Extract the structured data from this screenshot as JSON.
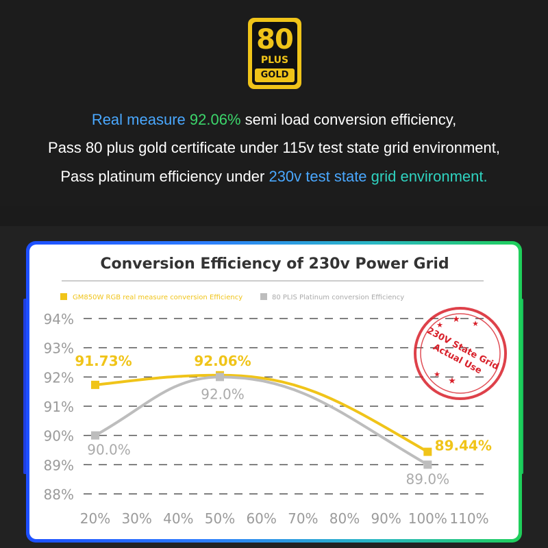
{
  "badge": {
    "number": "80",
    "plus": "PLUS",
    "grade": "GOLD"
  },
  "headline": {
    "line1": {
      "a": "Real measure ",
      "b": "92.06%",
      "c": " semi load conversion efficiency,"
    },
    "line2": "Pass 80 plus gold certificate under 115v test state grid environment,",
    "line3": {
      "a": "Pass platinum efficiency under ",
      "b": "230v test state ",
      "c": "grid environment."
    }
  },
  "stamp": {
    "line1": "230V State Grid",
    "line2": "Actual Use"
  },
  "colors": {
    "gold": "#f0c419",
    "gray": "#bdbdbd",
    "stamp": "#d8202a"
  },
  "chart_data": {
    "type": "line",
    "title": "Conversion Efficiency of 230v Power Grid",
    "legend_position": "top",
    "x": [
      20,
      30,
      40,
      50,
      60,
      70,
      80,
      90,
      100,
      110
    ],
    "x_tick_labels": [
      "20%",
      "30%",
      "40%",
      "50%",
      "60%",
      "70%",
      "80%",
      "90%",
      "100%",
      "110%"
    ],
    "y_tick_labels": [
      "94%",
      "93%",
      "92%",
      "91%",
      "90%",
      "89%",
      "88%"
    ],
    "y_ticks": [
      94,
      93,
      92,
      91,
      90,
      89,
      88
    ],
    "ylim": [
      88,
      94
    ],
    "xlim": [
      20,
      110
    ],
    "grid": "dashed-horizontal",
    "series": [
      {
        "name": "GM850W RGB real measure conversion Efficiency",
        "color": "#f0c419",
        "points": [
          {
            "x": 20,
            "y": 91.73
          },
          {
            "x": 50,
            "y": 92.06
          },
          {
            "x": 100,
            "y": 89.44
          }
        ],
        "labels": [
          "91.73%",
          "92.06%",
          "89.44%"
        ]
      },
      {
        "name": "80 PLIS Platinum conversion Efficiency",
        "color": "#bdbdbd",
        "points": [
          {
            "x": 20,
            "y": 90.0
          },
          {
            "x": 50,
            "y": 92.0
          },
          {
            "x": 100,
            "y": 89.0
          }
        ],
        "labels": [
          "90.0%",
          "92.0%",
          "89.0%"
        ]
      }
    ]
  }
}
